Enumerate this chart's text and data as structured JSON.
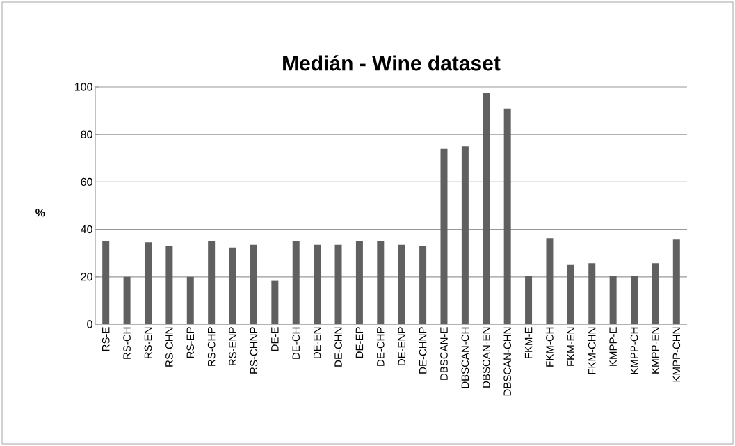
{
  "chart_data": {
    "type": "bar",
    "title": "Medián - Wine dataset",
    "ylabel": "%",
    "categories": [
      "RS-E",
      "RS-CH",
      "RS-EN",
      "RS-CHN",
      "RS-EP",
      "RS-CHP",
      "RS-ENP",
      "RS-CHNP",
      "DE-E",
      "DE-CH",
      "DE-EN",
      "DE-CHN",
      "DE-EP",
      "DE-CHP",
      "DE-ENP",
      "DE-CHNP",
      "DBSCAN-E",
      "DBSCAN-CH",
      "DBSCAN-EN",
      "DBSCAN-CHN",
      "FKM-E",
      "FKM-CH",
      "FKM-EN",
      "FKM-CHN",
      "KMPP-E",
      "KMPP-CH",
      "KMPP-EN",
      "KMPP-CHN"
    ],
    "values": [
      35,
      20,
      34.5,
      33,
      20,
      35,
      32.3,
      33.5,
      18.3,
      35,
      33.5,
      33.5,
      35,
      35,
      33.5,
      33,
      74,
      75,
      97.5,
      91,
      20.5,
      36.3,
      25,
      25.7,
      20.5,
      20.5,
      25.7,
      35.7
    ],
    "color": "#606060",
    "ylim": [
      0,
      100
    ],
    "yticks": [
      0,
      20,
      40,
      60,
      80,
      100
    ],
    "grid": "y"
  }
}
